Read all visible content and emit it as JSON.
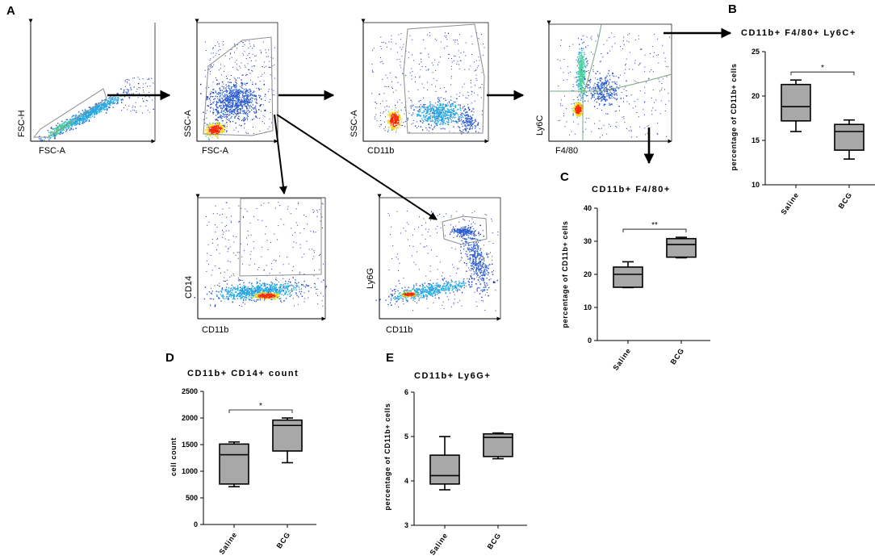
{
  "panel_labels": {
    "a": "A",
    "b": "B",
    "c": "C",
    "d": "D",
    "e": "E"
  },
  "flow_plots": [
    {
      "id": "fsc",
      "x_label": "FSC-A",
      "y_label": "FSC-H"
    },
    {
      "id": "ssc",
      "x_label": "FSC-A",
      "y_label": "SSC-A"
    },
    {
      "id": "cd11b",
      "x_label": "CD11b",
      "y_label": "SSC-A"
    },
    {
      "id": "ly6c",
      "x_label": "F4/80",
      "y_label": "Ly6C"
    },
    {
      "id": "cd14",
      "x_label": "CD11b",
      "y_label": "CD14"
    },
    {
      "id": "ly6g",
      "x_label": "CD11b",
      "y_label": "Ly6G"
    }
  ],
  "chart_data": [
    {
      "id": "B",
      "type": "box",
      "title": "CD11b+ F4/80+ Ly6C+",
      "ylabel": "percentage of CD11b+ cells",
      "xlabel": "",
      "ylim": [
        10,
        25
      ],
      "yticks": [
        10,
        15,
        20,
        25
      ],
      "categories": [
        "Saline",
        "BCG"
      ],
      "boxes": [
        {
          "name": "Saline",
          "min": 16,
          "q1": 17.2,
          "median": 18.8,
          "q3": 21.3,
          "max": 21.8
        },
        {
          "name": "BCG",
          "min": 12.9,
          "q1": 13.9,
          "median": 16.0,
          "q3": 16.8,
          "max": 17.3
        }
      ],
      "significance": "*"
    },
    {
      "id": "C",
      "type": "box",
      "title": "CD11b+ F4/80+",
      "ylabel": "percentage of CD11b+ cells",
      "xlabel": "",
      "ylim": [
        0,
        40
      ],
      "yticks": [
        0,
        10,
        20,
        30,
        40
      ],
      "categories": [
        "Saline",
        "BCG"
      ],
      "boxes": [
        {
          "name": "Saline",
          "min": 16,
          "q1": 16.1,
          "median": 20.0,
          "q3": 22.2,
          "max": 23.8
        },
        {
          "name": "BCG",
          "min": 25.0,
          "q1": 25.2,
          "median": 29.0,
          "q3": 30.8,
          "max": 31.2
        }
      ],
      "significance": "**"
    },
    {
      "id": "D",
      "type": "box",
      "title": "CD11b+ CD14+ count",
      "ylabel": "cell count",
      "xlabel": "",
      "ylim": [
        0,
        2500
      ],
      "yticks": [
        0,
        500,
        1000,
        1500,
        2000,
        2500
      ],
      "categories": [
        "Saline",
        "BCG"
      ],
      "boxes": [
        {
          "name": "Saline",
          "min": 710,
          "q1": 760,
          "median": 1310,
          "q3": 1510,
          "max": 1550
        },
        {
          "name": "BCG",
          "min": 1160,
          "q1": 1380,
          "median": 1860,
          "q3": 1960,
          "max": 2000
        }
      ],
      "significance": "*"
    },
    {
      "id": "E",
      "type": "box",
      "title": "CD11b+ Ly6G+",
      "ylabel": "percentage of CD11b+ cells",
      "xlabel": "",
      "ylim": [
        3,
        6
      ],
      "yticks": [
        3,
        4,
        5,
        6
      ],
      "categories": [
        "Saline",
        "BCG"
      ],
      "boxes": [
        {
          "name": "Saline",
          "min": 3.8,
          "q1": 3.93,
          "median": 4.12,
          "q3": 4.58,
          "max": 5.0
        },
        {
          "name": "BCG",
          "min": 4.5,
          "q1": 4.55,
          "median": 4.98,
          "q3": 5.06,
          "max": 5.08
        }
      ],
      "significance": ""
    }
  ],
  "colors": {
    "box_fill": "#a8a8a8",
    "gate": "#8c8c8c",
    "dense": "#1e2fb0",
    "mid": "#28a8e0",
    "hot": "#ff2a00"
  }
}
